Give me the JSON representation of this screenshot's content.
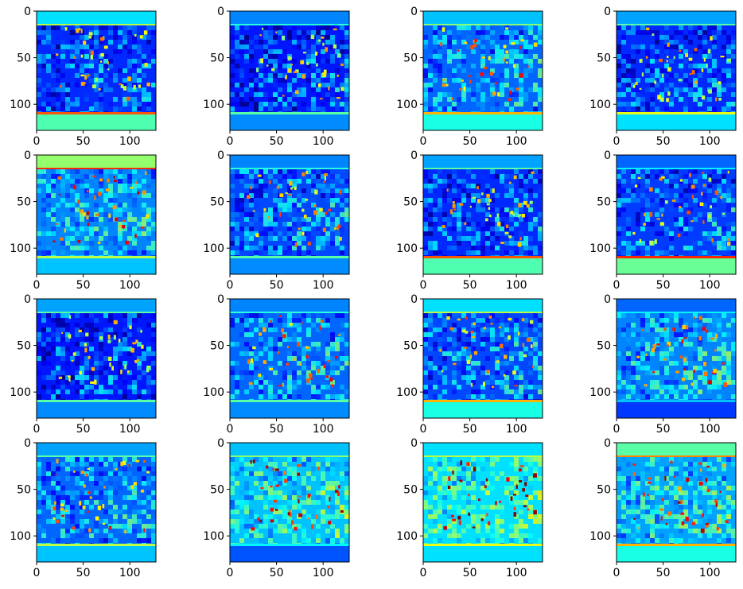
{
  "figure": {
    "panel_count": 16,
    "grid": {
      "rows": 4,
      "cols": 4
    },
    "colormap": "jet",
    "colormap_stops": [
      "#00007f",
      "#0000ff",
      "#00ffff",
      "#ffff00",
      "#ff0000",
      "#7f0000"
    ]
  },
  "chart_data": {
    "type": "heatmap",
    "description_of_content": "",
    "image_size": [
      128,
      128
    ],
    "x_ticks": [
      "0",
      "50",
      "100"
    ],
    "y_ticks": [
      "0",
      "50",
      "100"
    ],
    "xlim": [
      0,
      128
    ],
    "ylim": [
      128,
      0
    ],
    "grid": false,
    "panels": [
      {
        "index": 1,
        "intensity": 0.25,
        "stripe_top": 0.55,
        "stripe_bottom": 0.8
      },
      {
        "index": 2,
        "intensity": 0.22,
        "stripe_top": 0.4,
        "stripe_bottom": 0.45
      },
      {
        "index": 3,
        "intensity": 0.35,
        "stripe_top": 0.5,
        "stripe_bottom": 0.7
      },
      {
        "index": 4,
        "intensity": 0.25,
        "stripe_top": 0.45,
        "stripe_bottom": 0.6
      },
      {
        "index": 5,
        "intensity": 0.4,
        "stripe_top": 0.85,
        "stripe_bottom": 0.55
      },
      {
        "index": 6,
        "intensity": 0.3,
        "stripe_top": 0.4,
        "stripe_bottom": 0.45
      },
      {
        "index": 7,
        "intensity": 0.25,
        "stripe_top": 0.45,
        "stripe_bottom": 0.8
      },
      {
        "index": 8,
        "intensity": 0.28,
        "stripe_top": 0.35,
        "stripe_bottom": 0.85
      },
      {
        "index": 9,
        "intensity": 0.22,
        "stripe_top": 0.45,
        "stripe_bottom": 0.45
      },
      {
        "index": 10,
        "intensity": 0.35,
        "stripe_top": 0.4,
        "stripe_bottom": 0.45
      },
      {
        "index": 11,
        "intensity": 0.3,
        "stripe_top": 0.55,
        "stripe_bottom": 0.7
      },
      {
        "index": 12,
        "intensity": 0.4,
        "stripe_top": 0.35,
        "stripe_bottom": 0.3
      },
      {
        "index": 13,
        "intensity": 0.35,
        "stripe_top": 0.45,
        "stripe_bottom": 0.55
      },
      {
        "index": 14,
        "intensity": 0.5,
        "stripe_top": 0.5,
        "stripe_bottom": 0.35
      },
      {
        "index": 15,
        "intensity": 0.55,
        "stripe_top": 0.55,
        "stripe_bottom": 0.6
      },
      {
        "index": 16,
        "intensity": 0.45,
        "stripe_top": 0.75,
        "stripe_bottom": 0.7
      }
    ]
  }
}
